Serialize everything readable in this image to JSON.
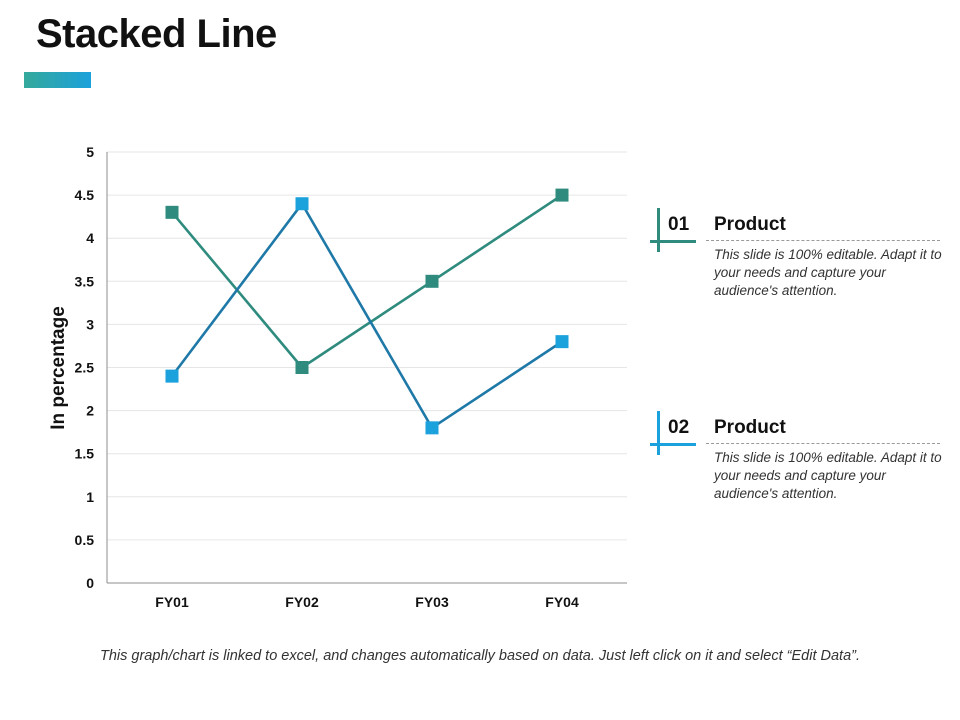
{
  "page": {
    "title": "Stacked Line",
    "footer_note": "This graph/chart is linked to excel, and changes automatically based on data. Just left click on it and select “Edit Data”."
  },
  "legend": [
    {
      "number": "01",
      "label": "Product",
      "color": "#2e8b7e",
      "description": "This slide is 100% editable. Adapt it to your needs and capture your audience's attention."
    },
    {
      "number": "02",
      "label": "Product",
      "color": "#1ba1db",
      "description": "This slide is 100% editable. Adapt it to your needs and capture your audience's attention."
    }
  ],
  "colors": {
    "series1_line": "#2e8b7e",
    "series1_marker": "#2e8b7e",
    "series2_line": "#1f79a8",
    "series2_marker": "#1ba1db",
    "accent_gradient_start": "#35a99b",
    "accent_gradient_end": "#1ba1db"
  },
  "chart_data": {
    "type": "line",
    "title": "",
    "xlabel": "",
    "ylabel": "In percentage",
    "categories": [
      "FY01",
      "FY02",
      "FY03",
      "FY04"
    ],
    "yticks": [
      "0",
      "0.5",
      "1",
      "1.5",
      "2",
      "2.5",
      "3",
      "3.5",
      "4",
      "4.5",
      "5"
    ],
    "ylim": [
      0,
      5
    ],
    "grid": true,
    "series": [
      {
        "name": "Product 01",
        "values": [
          4.3,
          2.5,
          3.5,
          4.5
        ]
      },
      {
        "name": "Product 02",
        "values": [
          2.4,
          4.4,
          1.8,
          2.8
        ]
      }
    ]
  }
}
